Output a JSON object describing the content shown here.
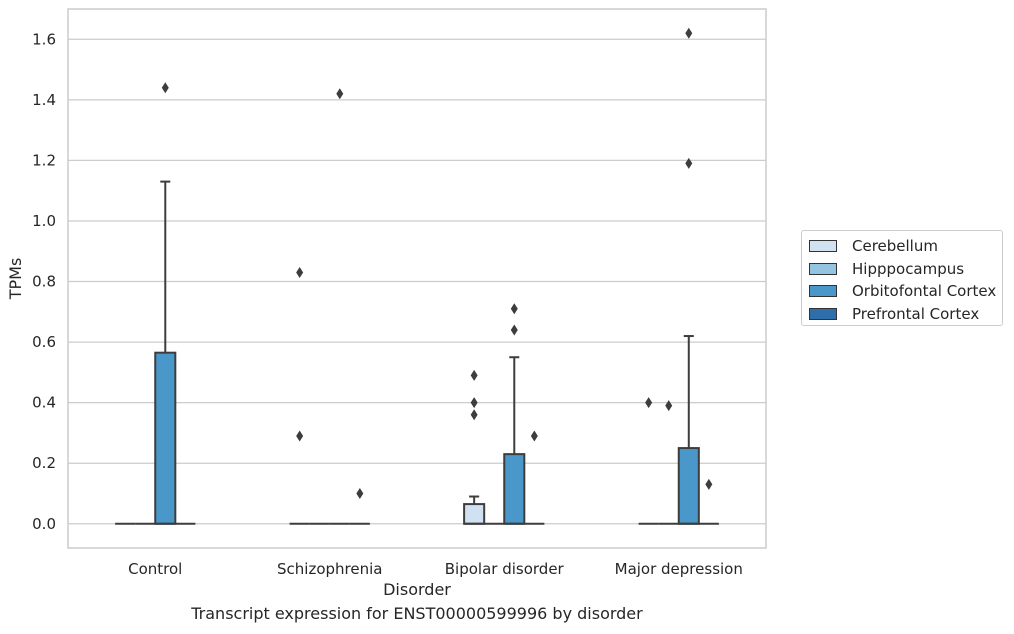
{
  "chart_data": {
    "type": "boxplot",
    "caption": "Transcript expression for ENST00000599996 by disorder",
    "xlabel": "Disorder",
    "ylabel": "TPMs",
    "ylim": [
      -0.08,
      1.7
    ],
    "yticks": [
      0.0,
      0.2,
      0.4,
      0.6,
      0.8,
      1.0,
      1.2,
      1.4,
      1.6
    ],
    "ytick_labels": [
      "0.0",
      "0.2",
      "0.4",
      "0.6",
      "0.8",
      "1.0",
      "1.2",
      "1.4",
      "1.6"
    ],
    "grid": true,
    "legend_position": "right",
    "categories": [
      "Control",
      "Schizophrenia",
      "Bipolar disorder",
      "Major depression"
    ],
    "series": [
      {
        "name": "Cerebellum",
        "color": "#d0e1f2"
      },
      {
        "name": "Hipppocampus",
        "color": "#94c4df"
      },
      {
        "name": "Orbitofontal Cortex",
        "color": "#4a98c9"
      },
      {
        "name": "Prefrontal Cortex",
        "color": "#2e6fab"
      }
    ],
    "boxes": [
      {
        "category": "Control",
        "series": "Cerebellum",
        "q1": 0,
        "median": 0,
        "q3": 0,
        "whisker_low": 0,
        "whisker_high": 0,
        "outliers": []
      },
      {
        "category": "Control",
        "series": "Hipppocampus",
        "q1": 0,
        "median": 0,
        "q3": 0,
        "whisker_low": 0,
        "whisker_high": 0,
        "outliers": []
      },
      {
        "category": "Control",
        "series": "Orbitofontal Cortex",
        "q1": 0,
        "median": 0,
        "q3": 0.565,
        "whisker_low": 0,
        "whisker_high": 1.13,
        "outliers": [
          1.44
        ]
      },
      {
        "category": "Control",
        "series": "Prefrontal Cortex",
        "q1": 0,
        "median": 0,
        "q3": 0,
        "whisker_low": 0,
        "whisker_high": 0,
        "outliers": []
      },
      {
        "category": "Schizophrenia",
        "series": "Cerebellum",
        "q1": 0,
        "median": 0,
        "q3": 0,
        "whisker_low": 0,
        "whisker_high": 0,
        "outliers": [
          0.83,
          0.29
        ]
      },
      {
        "category": "Schizophrenia",
        "series": "Hipppocampus",
        "q1": 0,
        "median": 0,
        "q3": 0,
        "whisker_low": 0,
        "whisker_high": 0,
        "outliers": []
      },
      {
        "category": "Schizophrenia",
        "series": "Orbitofontal Cortex",
        "q1": 0,
        "median": 0,
        "q3": 0,
        "whisker_low": 0,
        "whisker_high": 0,
        "outliers": [
          1.42
        ]
      },
      {
        "category": "Schizophrenia",
        "series": "Prefrontal Cortex",
        "q1": 0,
        "median": 0,
        "q3": 0,
        "whisker_low": 0,
        "whisker_high": 0,
        "outliers": [
          0.1
        ]
      },
      {
        "category": "Bipolar disorder",
        "series": "Cerebellum",
        "q1": 0,
        "median": 0,
        "q3": 0.065,
        "whisker_low": 0,
        "whisker_high": 0.09,
        "outliers": [
          0.49,
          0.4,
          0.36
        ]
      },
      {
        "category": "Bipolar disorder",
        "series": "Hipppocampus",
        "q1": 0,
        "median": 0,
        "q3": 0,
        "whisker_low": 0,
        "whisker_high": 0,
        "outliers": []
      },
      {
        "category": "Bipolar disorder",
        "series": "Orbitofontal Cortex",
        "q1": 0,
        "median": 0,
        "q3": 0.23,
        "whisker_low": 0,
        "whisker_high": 0.55,
        "outliers": [
          0.71,
          0.64
        ]
      },
      {
        "category": "Bipolar disorder",
        "series": "Prefrontal Cortex",
        "q1": 0,
        "median": 0,
        "q3": 0,
        "whisker_low": 0,
        "whisker_high": 0,
        "outliers": [
          0.29
        ]
      },
      {
        "category": "Major depression",
        "series": "Cerebellum",
        "q1": 0,
        "median": 0,
        "q3": 0,
        "whisker_low": 0,
        "whisker_high": 0,
        "outliers": [
          0.4
        ]
      },
      {
        "category": "Major depression",
        "series": "Hipppocampus",
        "q1": 0,
        "median": 0,
        "q3": 0,
        "whisker_low": 0,
        "whisker_high": 0,
        "outliers": [
          0.39
        ]
      },
      {
        "category": "Major depression",
        "series": "Orbitofontal Cortex",
        "q1": 0,
        "median": 0,
        "q3": 0.25,
        "whisker_low": 0,
        "whisker_high": 0.62,
        "outliers": [
          1.62,
          1.19
        ]
      },
      {
        "category": "Major depression",
        "series": "Prefrontal Cortex",
        "q1": 0,
        "median": 0,
        "q3": 0,
        "whisker_low": 0,
        "whisker_high": 0,
        "outliers": [
          0.13
        ]
      }
    ]
  }
}
